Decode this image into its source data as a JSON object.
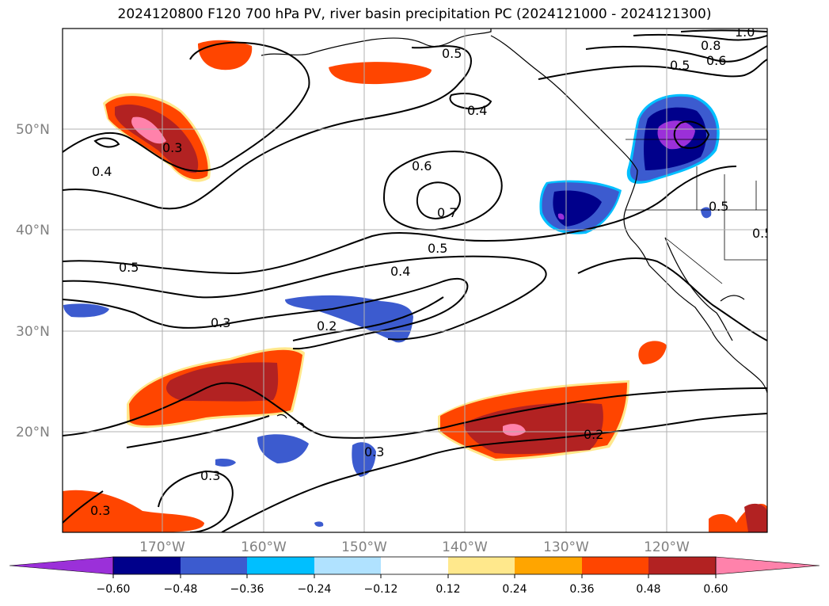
{
  "title": "2024120800 F120 700 hPa PV, river basin precipitation PC (2024121000 - 2024121300)",
  "lat_labels": [
    "50°N",
    "40°N",
    "30°N",
    "20°N"
  ],
  "lon_labels": [
    "170°W",
    "160°W",
    "150°W",
    "140°W",
    "130°W",
    "120°W"
  ],
  "contour_labels": [
    "0.5",
    "0.8",
    "1.0",
    "0.5",
    "0.6",
    "0.4",
    "0.3",
    "0.4",
    "0.6",
    "0.7",
    "0.5",
    "0.4",
    "0.5",
    "0.3",
    "0.2",
    "0.5",
    "0.5",
    "0.2",
    "0.3",
    "0.3",
    "0.3"
  ],
  "colorbar": {
    "colors": [
      "#9b30d9",
      "#00008b",
      "#3c5bcf",
      "#00bfff",
      "#b0e2ff",
      "#ffffff",
      "#ffe88c",
      "#ffa500",
      "#ff4500",
      "#b22222",
      "#ff82ab"
    ],
    "tick_labels": [
      "−0.60",
      "−0.48",
      "−0.36",
      "−0.24",
      "−0.12",
      "0.12",
      "0.24",
      "0.36",
      "0.48",
      "0.60"
    ]
  }
}
